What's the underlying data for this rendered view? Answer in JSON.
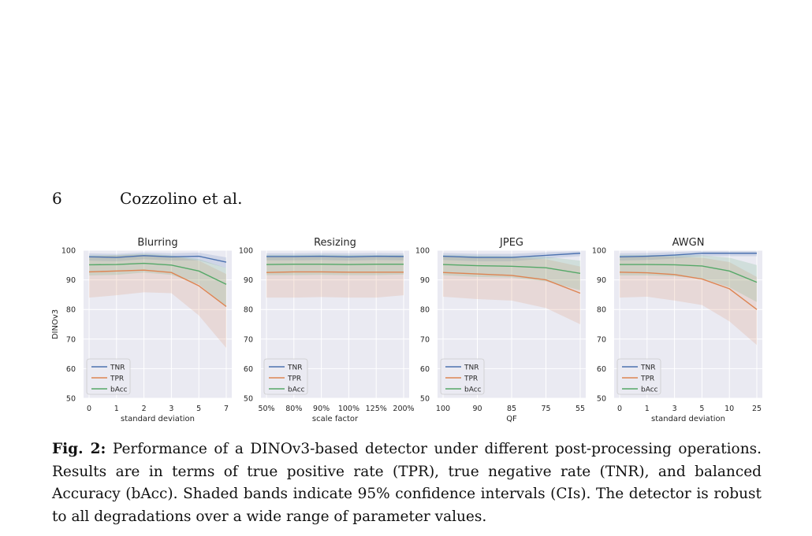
{
  "header": {
    "page_number": "6",
    "running_head": "Cozzolino et al."
  },
  "caption": {
    "label": "Fig. 2:",
    "text": "Performance of a DINOv3-based detector under different post-processing operations. Results are in terms of true positive rate (TPR), true negative rate (TNR), and balanced Accuracy (bAcc). Shaded bands indicate 95% confidence intervals (CIs). The detector is robust to all degradations over a wide range of parameter values."
  },
  "colors": {
    "TNR": "#4c72b0",
    "TPR": "#dd8452",
    "bAcc": "#55a868",
    "panel_bg": "#eaeaf2",
    "grid": "#ffffff"
  },
  "chart_data": [
    {
      "type": "line",
      "title": "Blurring",
      "xlabel": "standard deviation",
      "ylabel": "DINOv3",
      "categories": [
        "0",
        "1",
        "2",
        "3",
        "5",
        "7"
      ],
      "ylim": [
        50,
        100
      ],
      "yticks": [
        "50",
        "60",
        "70",
        "80",
        "90",
        "100"
      ],
      "legend": "bottom-left",
      "grid": true,
      "series": [
        {
          "name": "TNR",
          "values": [
            97.8,
            97.6,
            98.2,
            97.8,
            98.0,
            96.0
          ],
          "lower": [
            96.5,
            96.3,
            97.0,
            96.5,
            96.6,
            94.0
          ],
          "upper": [
            99.0,
            98.8,
            99.3,
            99.0,
            99.2,
            97.6
          ]
        },
        {
          "name": "TPR",
          "values": [
            92.7,
            93.0,
            93.3,
            92.5,
            88.0,
            81.0
          ],
          "lower": [
            84.0,
            84.8,
            85.8,
            85.5,
            78.0,
            67.0
          ],
          "upper": [
            98.0,
            98.2,
            98.5,
            98.0,
            96.5,
            92.0
          ]
        },
        {
          "name": "bAcc",
          "values": [
            95.1,
            95.2,
            95.6,
            95.0,
            93.0,
            88.5
          ],
          "lower": [
            91.5,
            91.7,
            92.5,
            91.7,
            88.5,
            81.0
          ],
          "upper": [
            98.3,
            98.4,
            98.8,
            98.3,
            97.0,
            94.0
          ]
        }
      ]
    },
    {
      "type": "line",
      "title": "Resizing",
      "xlabel": "scale factor",
      "ylabel": "",
      "categories": [
        "50%",
        "80%",
        "90%",
        "100%",
        "125%",
        "200%"
      ],
      "ylim": [
        50,
        100
      ],
      "yticks": [
        "50",
        "60",
        "70",
        "80",
        "90",
        "100"
      ],
      "legend": "bottom-left",
      "grid": true,
      "series": [
        {
          "name": "TNR",
          "values": [
            97.9,
            97.9,
            98.0,
            97.8,
            98.0,
            97.9
          ],
          "lower": [
            96.6,
            96.6,
            96.7,
            96.5,
            96.7,
            96.6
          ],
          "upper": [
            99.0,
            99.0,
            99.1,
            99.0,
            99.1,
            99.0
          ]
        },
        {
          "name": "TPR",
          "values": [
            92.5,
            92.7,
            92.7,
            92.6,
            92.6,
            92.6
          ],
          "lower": [
            84.0,
            84.0,
            84.2,
            84.0,
            84.0,
            84.8
          ],
          "upper": [
            98.0,
            98.0,
            98.1,
            98.0,
            98.0,
            98.1
          ]
        },
        {
          "name": "bAcc",
          "values": [
            95.2,
            95.3,
            95.3,
            95.2,
            95.3,
            95.3
          ],
          "lower": [
            91.6,
            91.6,
            91.7,
            91.6,
            91.6,
            91.8
          ],
          "upper": [
            98.4,
            98.4,
            98.5,
            98.4,
            98.4,
            98.4
          ]
        }
      ]
    },
    {
      "type": "line",
      "title": "JPEG",
      "xlabel": "QF",
      "ylabel": "",
      "categories": [
        "100",
        "90",
        "85",
        "75",
        "55"
      ],
      "ylim": [
        50,
        100
      ],
      "yticks": [
        "50",
        "60",
        "70",
        "80",
        "90",
        "100"
      ],
      "legend": "bottom-left",
      "grid": true,
      "series": [
        {
          "name": "TNR",
          "values": [
            98.0,
            97.6,
            97.6,
            98.3,
            99.0
          ],
          "lower": [
            96.7,
            96.3,
            96.3,
            97.2,
            98.0
          ],
          "upper": [
            99.1,
            98.8,
            98.8,
            99.3,
            99.7
          ]
        },
        {
          "name": "TPR",
          "values": [
            92.5,
            92.0,
            91.5,
            90.0,
            85.5
          ],
          "lower": [
            84.3,
            83.5,
            83.0,
            80.5,
            75.0
          ],
          "upper": [
            98.0,
            97.8,
            97.5,
            97.0,
            94.5
          ]
        },
        {
          "name": "bAcc",
          "values": [
            95.2,
            94.8,
            94.6,
            94.1,
            92.2
          ],
          "lower": [
            91.6,
            91.0,
            90.8,
            89.5,
            86.5
          ],
          "upper": [
            98.4,
            98.2,
            98.0,
            97.8,
            96.5
          ]
        }
      ]
    },
    {
      "type": "line",
      "title": "AWGN",
      "xlabel": "standard deviation",
      "ylabel": "",
      "categories": [
        "0",
        "1",
        "3",
        "5",
        "10",
        "25"
      ],
      "ylim": [
        50,
        100
      ],
      "yticks": [
        "50",
        "60",
        "70",
        "80",
        "90",
        "100"
      ],
      "legend": "bottom-left",
      "grid": true,
      "series": [
        {
          "name": "TNR",
          "values": [
            97.8,
            98.0,
            98.4,
            99.0,
            99.0,
            99.0
          ],
          "lower": [
            96.5,
            96.7,
            97.2,
            98.0,
            98.0,
            98.0
          ],
          "upper": [
            99.0,
            99.1,
            99.4,
            99.7,
            99.7,
            99.7
          ]
        },
        {
          "name": "TPR",
          "values": [
            92.6,
            92.4,
            91.8,
            90.3,
            87.0,
            80.0
          ],
          "lower": [
            84.0,
            84.3,
            83.0,
            81.5,
            76.0,
            68.0
          ],
          "upper": [
            98.0,
            98.0,
            97.8,
            97.5,
            96.0,
            91.0
          ]
        },
        {
          "name": "bAcc",
          "values": [
            95.2,
            95.2,
            95.1,
            94.7,
            93.0,
            89.2
          ],
          "lower": [
            91.5,
            91.5,
            91.2,
            90.5,
            87.5,
            82.5
          ],
          "upper": [
            98.4,
            98.4,
            98.4,
            98.3,
            97.5,
            95.0
          ]
        }
      ]
    }
  ]
}
